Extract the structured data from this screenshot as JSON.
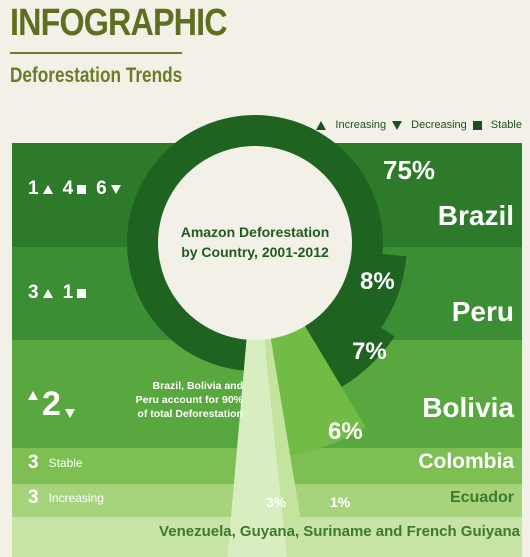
{
  "header": {
    "title": "INFOGRAPHIC",
    "subtitle": "Deforestation Trends"
  },
  "legend": [
    "Increasing",
    "Decreasing",
    "Stable"
  ],
  "trend_rows": [
    [
      "1",
      "4",
      "6"
    ],
    [
      "3",
      "1"
    ],
    [
      "2"
    ],
    [
      "3",
      "Stable"
    ],
    [
      "3",
      "Increasing"
    ]
  ],
  "chart_data": {
    "type": "pie",
    "title": "Amazon Deforestation by Country, 2001-2012",
    "categories": [
      "Brazil",
      "Peru",
      "Bolivia",
      "Colombia",
      "Ecuador",
      "Venezuela, Guyana, Suriname and French Guiyana"
    ],
    "values": [
      75,
      8,
      7,
      6,
      1,
      3
    ],
    "value_labels": [
      "75%",
      "8%",
      "7%",
      "6%",
      "1%",
      "3%"
    ],
    "colors": [
      "#1e6420",
      "#1e6420",
      "#1e6420",
      "#72bb45",
      "#c4e39f",
      "#d8eec0"
    ],
    "annotation": "Brazil, Bolivia and Peru account for 90% of total Deforestation"
  }
}
